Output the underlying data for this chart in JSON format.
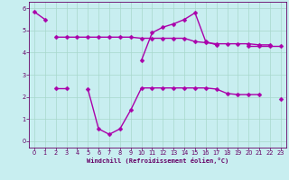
{
  "x": [
    0,
    1,
    2,
    3,
    4,
    5,
    6,
    7,
    8,
    9,
    10,
    11,
    12,
    13,
    14,
    15,
    16,
    17,
    18,
    19,
    20,
    21,
    22,
    23
  ],
  "line1": [
    5.85,
    5.5,
    null,
    null,
    null,
    null,
    null,
    null,
    null,
    null,
    3.65,
    4.9,
    5.15,
    5.3,
    5.5,
    5.8,
    4.5,
    4.35,
    null,
    null,
    4.3,
    4.3,
    4.3,
    4.3
  ],
  "line2": [
    null,
    null,
    4.7,
    4.7,
    4.7,
    4.7,
    4.7,
    4.7,
    4.7,
    4.7,
    4.65,
    4.65,
    4.65,
    4.65,
    4.65,
    4.5,
    4.45,
    4.4,
    4.4,
    4.4,
    4.4,
    4.35,
    4.35,
    null
  ],
  "line3": [
    null,
    null,
    2.4,
    2.4,
    null,
    2.35,
    0.55,
    0.3,
    0.55,
    1.4,
    2.4,
    2.4,
    2.4,
    2.4,
    2.4,
    2.4,
    2.4,
    2.35,
    2.15,
    2.1,
    2.1,
    2.1,
    null,
    1.9
  ],
  "bg_color": "#c8eef0",
  "grid_color": "#a8d8cc",
  "line_color": "#aa00aa",
  "xlim": [
    -0.5,
    23.5
  ],
  "ylim": [
    -0.3,
    6.3
  ],
  "yticks": [
    0,
    1,
    2,
    3,
    4,
    5,
    6
  ],
  "xticks": [
    0,
    1,
    2,
    3,
    4,
    5,
    6,
    7,
    8,
    9,
    10,
    11,
    12,
    13,
    14,
    15,
    16,
    17,
    18,
    19,
    20,
    21,
    22,
    23
  ],
  "xlabel": "Windchill (Refroidissement éolien,°C)",
  "marker": "D",
  "markersize": 2.5,
  "linewidth": 1.0,
  "font_color": "#660066",
  "label_fontsize": 5.0,
  "tick_fontsize": 4.8
}
